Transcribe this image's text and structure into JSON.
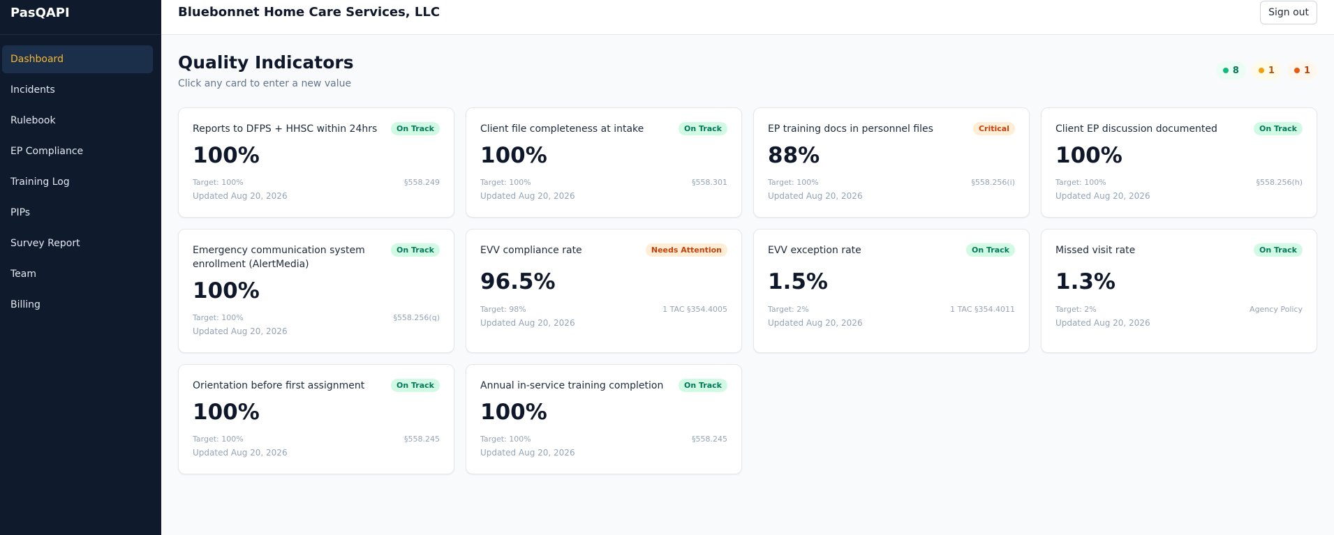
{
  "app": {
    "brand": "PasQAPI"
  },
  "sidebar": {
    "items": [
      {
        "label": "Dashboard",
        "active": true
      },
      {
        "label": "Incidents"
      },
      {
        "label": "Rulebook"
      },
      {
        "label": "EP Compliance"
      },
      {
        "label": "Training Log"
      },
      {
        "label": "PIPs"
      },
      {
        "label": "Survey Report"
      },
      {
        "label": "Team"
      },
      {
        "label": "Billing"
      }
    ]
  },
  "header": {
    "org_name": "Bluebonnet Home Care Services, LLC",
    "sign_out_label": "Sign out"
  },
  "page": {
    "title": "Quality Indicators",
    "subtitle": "Click any card to enter a new value"
  },
  "summary": {
    "on_track_count": "8",
    "needs_attention_count": "1",
    "critical_count": "1",
    "colors": {
      "on_track": "#10b981",
      "needs_attention": "#f59e0b",
      "critical": "#ea580c"
    }
  },
  "cards": [
    {
      "title": "Reports to DFPS + HHSC within 24hrs",
      "status": "On Track",
      "value": "100%",
      "target": "Target: 100%",
      "reference": "§558.249",
      "updated": "Updated Aug 20, 2026"
    },
    {
      "title": "Client file completeness at intake",
      "status": "On Track",
      "value": "100%",
      "target": "Target: 100%",
      "reference": "§558.301",
      "updated": "Updated Aug 20, 2026"
    },
    {
      "title": "EP training docs in personnel files",
      "status": "Critical",
      "value": "88%",
      "target": "Target: 100%",
      "reference": "§558.256(i)",
      "updated": "Updated Aug 20, 2026"
    },
    {
      "title": "Client EP discussion documented",
      "status": "On Track",
      "value": "100%",
      "target": "Target: 100%",
      "reference": "§558.256(h)",
      "updated": "Updated Aug 20, 2026"
    },
    {
      "title": "Emergency communication system enrollment (AlertMedia)",
      "status": "On Track",
      "value": "100%",
      "target": "Target: 100%",
      "reference": "§558.256(q)",
      "updated": "Updated Aug 20, 2026"
    },
    {
      "title": "EVV compliance rate",
      "status": "Needs Attention",
      "value": "96.5%",
      "target": "Target: 98%",
      "reference": "1 TAC §354.4005",
      "updated": "Updated Aug 20, 2026"
    },
    {
      "title": "EVV exception rate",
      "status": "On Track",
      "value": "1.5%",
      "target": "Target: 2%",
      "reference": "1 TAC §354.4011",
      "updated": "Updated Aug 20, 2026"
    },
    {
      "title": "Missed visit rate",
      "status": "On Track",
      "value": "1.3%",
      "target": "Target: 2%",
      "reference": "Agency Policy",
      "updated": "Updated Aug 20, 2026"
    },
    {
      "title": "Orientation before first assignment",
      "status": "On Track",
      "value": "100%",
      "target": "Target: 100%",
      "reference": "§558.245",
      "updated": "Updated Aug 20, 2026"
    },
    {
      "title": "Annual in-service training completion",
      "status": "On Track",
      "value": "100%",
      "target": "Target: 100%",
      "reference": "§558.245",
      "updated": "Updated Aug 20, 2026"
    }
  ]
}
